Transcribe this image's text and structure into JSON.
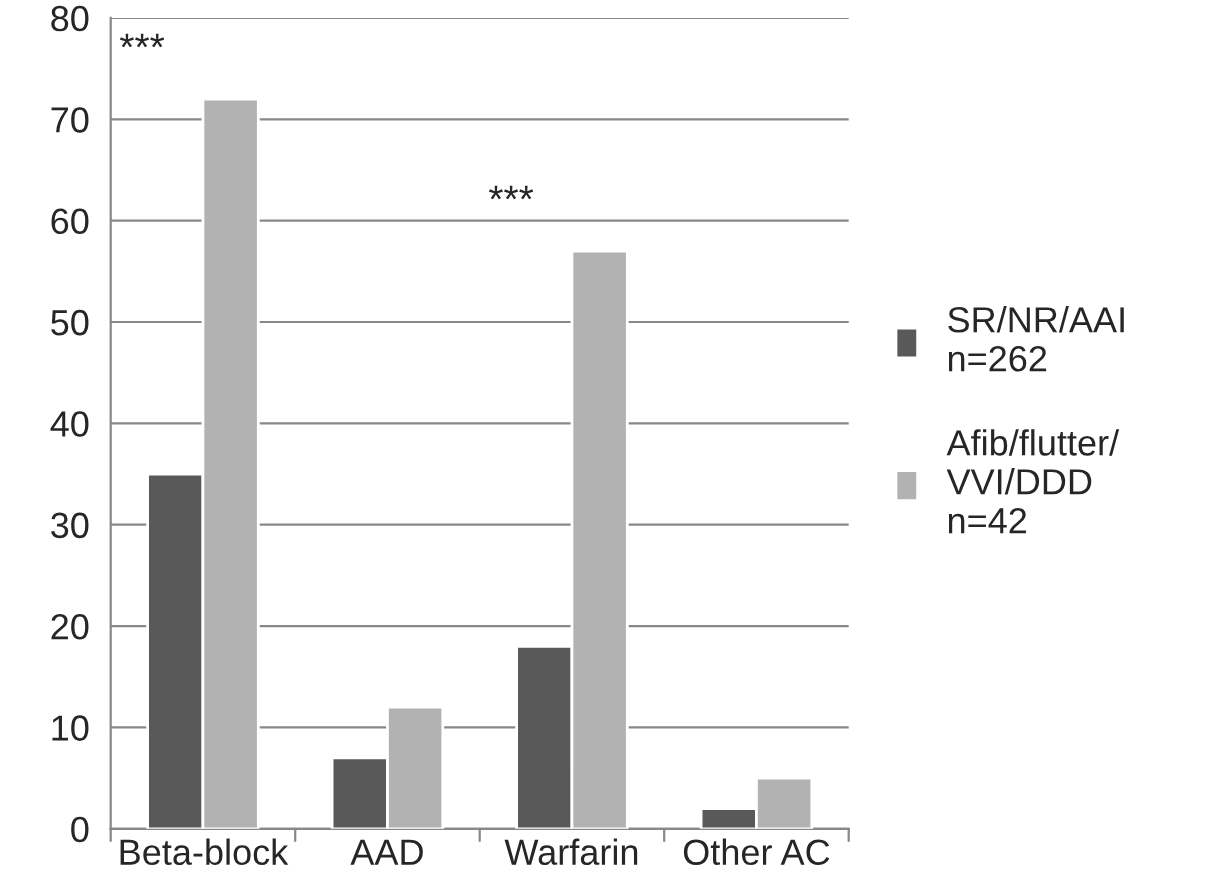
{
  "chart_data": {
    "type": "bar",
    "categories": [
      "Beta-block",
      "AAD",
      "Warfarin",
      "Other AC"
    ],
    "series": [
      {
        "name": "SR/NR/AAI\nn=262",
        "color": "#595959",
        "values": [
          35,
          7,
          18,
          2
        ]
      },
      {
        "name": "Afib/flutter/\nVVI/DDD\nn=42",
        "color": "#b2b2b2",
        "values": [
          72,
          12,
          57,
          5
        ]
      }
    ],
    "ylim": [
      0,
      80
    ],
    "yticks": [
      0,
      10,
      20,
      30,
      40,
      50,
      60,
      70,
      80
    ],
    "grid": "y",
    "legend": "right",
    "annotations": [
      "***",
      "***"
    ]
  }
}
